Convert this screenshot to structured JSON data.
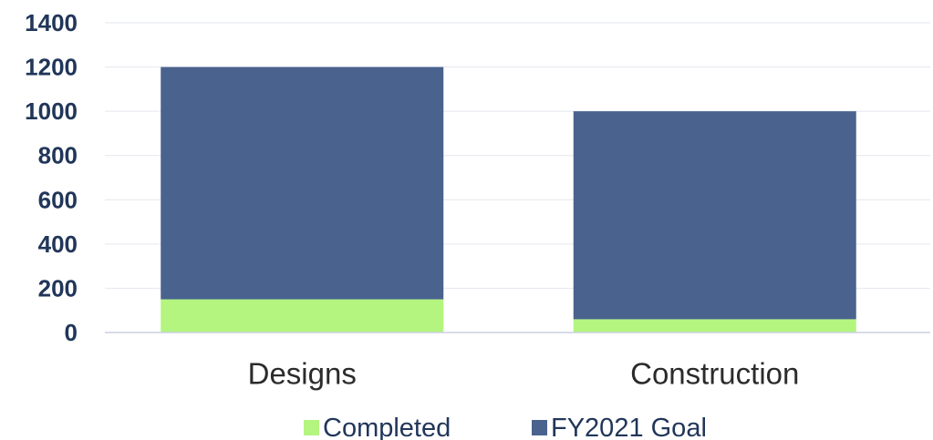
{
  "chart_data": {
    "type": "bar",
    "stacked": true,
    "categories": [
      "Designs",
      "Construction"
    ],
    "series": [
      {
        "name": "Completed",
        "values": [
          150,
          60
        ],
        "color": "#b3f57f"
      },
      {
        "name": "FY2021 Goal",
        "values": [
          1050,
          940
        ],
        "color": "#4a628e"
      }
    ],
    "ylim": [
      0,
      1400
    ],
    "yticks": [
      "0",
      "200",
      "400",
      "600",
      "800",
      "1000",
      "1200",
      "1400"
    ],
    "grid": true,
    "legend_position": "bottom",
    "title": "",
    "xlabel": "",
    "ylabel": ""
  }
}
